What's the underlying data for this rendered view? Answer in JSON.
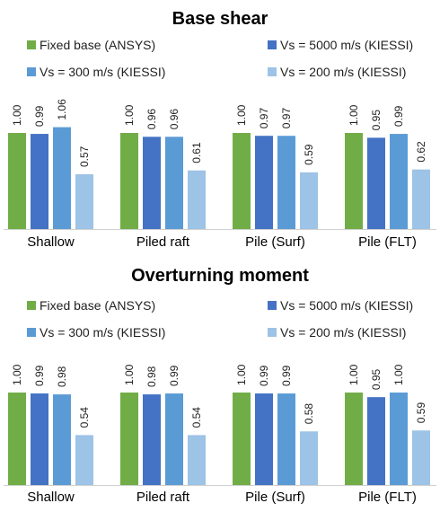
{
  "colors": {
    "fixed": "#70ad47",
    "vs5000": "#4472c4",
    "vs300": "#5b9bd5",
    "vs200": "#9dc3e6"
  },
  "chart_data": [
    {
      "type": "bar",
      "title": "Base shear",
      "categories": [
        "Shallow",
        "Piled raft",
        "Pile (Surf)",
        "Pile (FLT)"
      ],
      "ylim": [
        0,
        1.3
      ],
      "grid": false,
      "legend": "top",
      "series": [
        {
          "name": "Fixed base (ANSYS)",
          "values": [
            1.0,
            1.0,
            1.0,
            1.0
          ],
          "labels": [
            "1.00",
            "1.00",
            "1.00",
            "1.00"
          ]
        },
        {
          "name": "Vs = 5000 m/s (KIESSI)",
          "values": [
            0.99,
            0.96,
            0.97,
            0.95
          ],
          "labels": [
            "0.99",
            "0.96",
            "0.97",
            "0.95"
          ]
        },
        {
          "name": "Vs = 300 m/s (KIESSI)",
          "values": [
            1.06,
            0.96,
            0.97,
            0.99
          ],
          "labels": [
            "1.06",
            "0.96",
            "0.97",
            "0.99"
          ]
        },
        {
          "name": "Vs = 200 m/s (KIESSI)",
          "values": [
            0.57,
            0.61,
            0.59,
            0.62
          ],
          "labels": [
            "0.57",
            "0.61",
            "0.59",
            "0.62"
          ]
        }
      ]
    },
    {
      "type": "bar",
      "title": "Overturning moment",
      "categories": [
        "Shallow",
        "Piled raft",
        "Pile (Surf)",
        "Pile (FLT)"
      ],
      "ylim": [
        0,
        1.3
      ],
      "grid": false,
      "legend": "top",
      "series": [
        {
          "name": "Fixed base (ANSYS)",
          "values": [
            1.0,
            1.0,
            1.0,
            1.0
          ],
          "labels": [
            "1.00",
            "1.00",
            "1.00",
            "1.00"
          ]
        },
        {
          "name": "Vs = 5000 m/s (KIESSI)",
          "values": [
            0.99,
            0.98,
            0.99,
            0.95
          ],
          "labels": [
            "0.99",
            "0.98",
            "0.99",
            "0.95"
          ]
        },
        {
          "name": "Vs = 300 m/s (KIESSI)",
          "values": [
            0.98,
            0.99,
            0.99,
            1.0
          ],
          "labels": [
            "0.98",
            "0.99",
            "0.99",
            "1.00"
          ]
        },
        {
          "name": "Vs = 200 m/s (KIESSI)",
          "values": [
            0.54,
            0.54,
            0.58,
            0.59
          ],
          "labels": [
            "0.54",
            "0.54",
            "0.58",
            "0.59"
          ]
        }
      ]
    }
  ]
}
